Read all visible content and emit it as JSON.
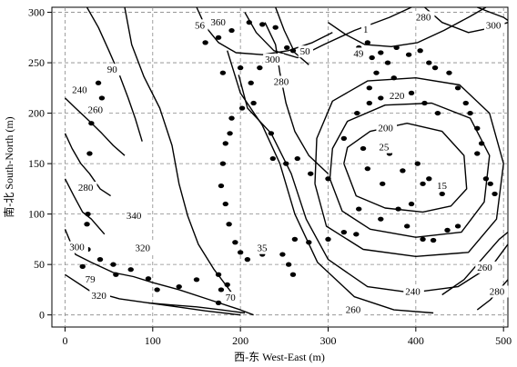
{
  "chart_data": {
    "type": "contour",
    "xlabel": "西-东  West-East (m)",
    "ylabel": "南-北  South-North (m)",
    "xlim": [
      -15,
      505
    ],
    "ylim": [
      -12,
      305
    ],
    "x_ticks": [
      0,
      100,
      200,
      300,
      400,
      500
    ],
    "y_ticks": [
      0,
      50,
      100,
      150,
      200,
      250,
      300
    ],
    "grid": true,
    "contour_lines": [
      {
        "label": "15",
        "points": [
          [
            318,
            150
          ],
          [
            332,
            118
          ],
          [
            365,
            106
          ],
          [
            408,
            102
          ],
          [
            440,
            108
          ],
          [
            458,
            125
          ],
          [
            455,
            158
          ],
          [
            430,
            182
          ],
          [
            390,
            190
          ],
          [
            348,
            182
          ],
          [
            322,
            166
          ],
          [
            318,
            150
          ]
        ]
      },
      {
        "label": "200",
        "points": [
          [
            302,
            135
          ],
          [
            316,
            103
          ],
          [
            348,
            85
          ],
          [
            400,
            77
          ],
          [
            452,
            82
          ],
          [
            478,
            112
          ],
          [
            484,
            158
          ],
          [
            462,
            195
          ],
          [
            418,
            210
          ],
          [
            365,
            208
          ],
          [
            322,
            192
          ],
          [
            305,
            165
          ],
          [
            302,
            135
          ]
        ]
      },
      {
        "label": "220",
        "points": [
          [
            285,
            130
          ],
          [
            298,
            88
          ],
          [
            340,
            65
          ],
          [
            400,
            58
          ],
          [
            460,
            62
          ],
          [
            492,
            95
          ],
          [
            500,
            150
          ],
          [
            484,
            200
          ],
          [
            450,
            228
          ],
          [
            400,
            235
          ],
          [
            345,
            232
          ],
          [
            305,
            212
          ],
          [
            287,
            175
          ],
          [
            285,
            130
          ]
        ]
      },
      {
        "label": "240",
        "points": [
          [
            198,
            238
          ],
          [
            208,
            205
          ],
          [
            235,
            180
          ],
          [
            258,
            140
          ],
          [
            275,
            95
          ],
          [
            300,
            55
          ],
          [
            345,
            28
          ],
          [
            395,
            22
          ],
          [
            448,
            28
          ],
          [
            488,
            50
          ],
          [
            505,
            70
          ]
        ]
      },
      {
        "label": "260",
        "points": [
          [
            185,
            262
          ],
          [
            200,
            220
          ],
          [
            225,
            188
          ],
          [
            245,
            150
          ],
          [
            262,
            100
          ],
          [
            288,
            52
          ],
          [
            330,
            18
          ],
          [
            375,
            5
          ],
          [
            420,
            2
          ]
        ]
      },
      {
        "label": "280",
        "points": [
          [
            228,
            290
          ],
          [
            240,
            268
          ],
          [
            245,
            240
          ],
          [
            252,
            210
          ],
          [
            262,
            182
          ],
          [
            278,
            158
          ],
          [
            300,
            140
          ]
        ]
      },
      {
        "label": "300",
        "points": [
          [
            205,
            300
          ],
          [
            218,
            280
          ],
          [
            238,
            262
          ],
          [
            265,
            255
          ],
          [
            295,
            268
          ],
          [
            330,
            282
          ],
          [
            370,
            295
          ],
          [
            395,
            305
          ]
        ]
      },
      {
        "label": "320",
        "points": [
          [
            0,
            40
          ],
          [
            28,
            24
          ],
          [
            62,
            16
          ],
          [
            95,
            12
          ],
          [
            128,
            8
          ],
          [
            160,
            4
          ],
          [
            200,
            0
          ]
        ]
      },
      {
        "label": "340",
        "points": [
          [
            68,
            305
          ],
          [
            76,
            268
          ],
          [
            90,
            236
          ],
          [
            108,
            205
          ],
          [
            122,
            168
          ],
          [
            130,
            130
          ],
          [
            140,
            98
          ],
          [
            152,
            70
          ],
          [
            170,
            45
          ],
          [
            190,
            22
          ]
        ]
      },
      {
        "label": "360",
        "points": [
          [
            150,
            305
          ],
          [
            160,
            286
          ],
          [
            175,
            270
          ],
          [
            195,
            260
          ],
          [
            225,
            258
          ],
          [
            255,
            262
          ],
          [
            282,
            270
          ],
          [
            305,
            280
          ]
        ]
      },
      {
        "label": "1",
        "points": [
          [
            300,
            290
          ],
          [
            320,
            278
          ],
          [
            342,
            268
          ],
          [
            372,
            266
          ],
          [
            402,
            270
          ],
          [
            432,
            282
          ],
          [
            462,
            296
          ],
          [
            480,
            305
          ]
        ]
      },
      {
        "label": "280",
        "points": [
          [
            410,
            305
          ],
          [
            430,
            290
          ],
          [
            460,
            280
          ],
          [
            488,
            285
          ],
          [
            505,
            290
          ]
        ]
      },
      {
        "label": "300",
        "points": [
          [
            470,
            305
          ],
          [
            485,
            300
          ],
          [
            500,
            295
          ],
          [
            505,
            292
          ]
        ]
      },
      {
        "label": "260",
        "points": [
          [
            430,
            20
          ],
          [
            455,
            35
          ],
          [
            475,
            55
          ],
          [
            495,
            75
          ],
          [
            505,
            82
          ]
        ]
      },
      {
        "label": "280",
        "points": [
          [
            470,
            5
          ],
          [
            485,
            15
          ],
          [
            500,
            30
          ],
          [
            505,
            35
          ]
        ]
      },
      {
        "label": "300",
        "points": [
          [
            0,
            85
          ],
          [
            12,
            60
          ],
          [
            30,
            52
          ],
          [
            55,
            42
          ],
          [
            78,
            38
          ],
          [
            100,
            32
          ],
          [
            130,
            25
          ],
          [
            165,
            15
          ],
          [
            200,
            5
          ],
          [
            215,
            0
          ]
        ]
      },
      {
        "label": "280",
        "points": [
          [
            0,
            135
          ],
          [
            10,
            118
          ],
          [
            20,
            102
          ],
          [
            30,
            95
          ],
          [
            45,
            80
          ]
        ]
      },
      {
        "label": "260",
        "points": [
          [
            0,
            180
          ],
          [
            8,
            165
          ],
          [
            18,
            150
          ],
          [
            28,
            140
          ],
          [
            40,
            125
          ],
          [
            52,
            118
          ]
        ]
      },
      {
        "label": "240",
        "points": [
          [
            0,
            215
          ],
          [
            12,
            205
          ],
          [
            28,
            192
          ],
          [
            42,
            180
          ],
          [
            55,
            168
          ],
          [
            68,
            158
          ]
        ]
      },
      {
        "label": "90",
        "points": [
          [
            25,
            305
          ],
          [
            38,
            285
          ],
          [
            50,
            262
          ],
          [
            62,
            238
          ],
          [
            72,
            215
          ],
          [
            80,
            195
          ],
          [
            88,
            172
          ]
        ]
      },
      {
        "label": "70",
        "points": [
          [
            95,
            12
          ],
          [
            120,
            10
          ],
          [
            150,
            8
          ],
          [
            178,
            5
          ],
          [
            205,
            2
          ]
        ]
      },
      {
        "label": "50",
        "points": [
          [
            240,
            305
          ],
          [
            250,
            282
          ],
          [
            262,
            260
          ],
          [
            278,
            248
          ]
        ]
      }
    ],
    "labels": [
      {
        "text": "56",
        "x": 148,
        "y": 284
      },
      {
        "text": "360",
        "x": 166,
        "y": 287
      },
      {
        "text": "300",
        "x": 228,
        "y": 250
      },
      {
        "text": "50",
        "x": 268,
        "y": 258
      },
      {
        "text": "280",
        "x": 238,
        "y": 228
      },
      {
        "text": "1",
        "x": 340,
        "y": 280
      },
      {
        "text": "280",
        "x": 400,
        "y": 292
      },
      {
        "text": "300",
        "x": 480,
        "y": 284
      },
      {
        "text": "49",
        "x": 329,
        "y": 256
      },
      {
        "text": "90",
        "x": 48,
        "y": 240
      },
      {
        "text": "240",
        "x": 8,
        "y": 220
      },
      {
        "text": "260",
        "x": 26,
        "y": 200
      },
      {
        "text": "220",
        "x": 370,
        "y": 214
      },
      {
        "text": "200",
        "x": 357,
        "y": 182
      },
      {
        "text": "25",
        "x": 358,
        "y": 163
      },
      {
        "text": "15",
        "x": 424,
        "y": 125
      },
      {
        "text": "280",
        "x": 15,
        "y": 123
      },
      {
        "text": "340",
        "x": 70,
        "y": 95
      },
      {
        "text": "320",
        "x": 80,
        "y": 63
      },
      {
        "text": "300",
        "x": 5,
        "y": 64
      },
      {
        "text": "35",
        "x": 219,
        "y": 63
      },
      {
        "text": "79",
        "x": 23,
        "y": 32
      },
      {
        "text": "320",
        "x": 30,
        "y": 16
      },
      {
        "text": "70",
        "x": 183,
        "y": 14
      },
      {
        "text": "240",
        "x": 388,
        "y": 20
      },
      {
        "text": "260",
        "x": 470,
        "y": 44
      },
      {
        "text": "280",
        "x": 484,
        "y": 20
      },
      {
        "text": "260",
        "x": 320,
        "y": 2
      }
    ],
    "points": [
      [
        35,
        200
      ],
      [
        38,
        230
      ],
      [
        42,
        215
      ],
      [
        30,
        190
      ],
      [
        28,
        160
      ],
      [
        32,
        125
      ],
      [
        26,
        100
      ],
      [
        25,
        90
      ],
      [
        22,
        70
      ],
      [
        26,
        65
      ],
      [
        20,
        48
      ],
      [
        40,
        55
      ],
      [
        55,
        50
      ],
      [
        75,
        45
      ],
      [
        58,
        40
      ],
      [
        95,
        36
      ],
      [
        105,
        25
      ],
      [
        130,
        28
      ],
      [
        150,
        35
      ],
      [
        175,
        40
      ],
      [
        178,
        25
      ],
      [
        185,
        30
      ],
      [
        175,
        12
      ],
      [
        160,
        270
      ],
      [
        175,
        275
      ],
      [
        190,
        282
      ],
      [
        210,
        290
      ],
      [
        225,
        288
      ],
      [
        240,
        285
      ],
      [
        253,
        265
      ],
      [
        260,
        262
      ],
      [
        180,
        240
      ],
      [
        200,
        245
      ],
      [
        215,
        210
      ],
      [
        235,
        180
      ],
      [
        237,
        155
      ],
      [
        252,
        150
      ],
      [
        265,
        155
      ],
      [
        280,
        140
      ],
      [
        300,
        135
      ],
      [
        318,
        175
      ],
      [
        333,
        200
      ],
      [
        347,
        210
      ],
      [
        360,
        215
      ],
      [
        350,
        255
      ],
      [
        360,
        260
      ],
      [
        368,
        250
      ],
      [
        378,
        265
      ],
      [
        392,
        258
      ],
      [
        405,
        262
      ],
      [
        415,
        250
      ],
      [
        422,
        245
      ],
      [
        438,
        240
      ],
      [
        448,
        225
      ],
      [
        457,
        210
      ],
      [
        462,
        200
      ],
      [
        470,
        185
      ],
      [
        475,
        170
      ],
      [
        470,
        160
      ],
      [
        480,
        135
      ],
      [
        485,
        130
      ],
      [
        490,
        120
      ],
      [
        345,
        145
      ],
      [
        362,
        130
      ],
      [
        335,
        105
      ],
      [
        380,
        105
      ],
      [
        390,
        88
      ],
      [
        408,
        75
      ],
      [
        420,
        74
      ],
      [
        436,
        84
      ],
      [
        448,
        88
      ],
      [
        430,
        120
      ],
      [
        415,
        135
      ],
      [
        402,
        150
      ],
      [
        385,
        143
      ],
      [
        370,
        160
      ],
      [
        340,
        165
      ],
      [
        335,
        265
      ],
      [
        345,
        270
      ],
      [
        355,
        240
      ],
      [
        347,
        225
      ],
      [
        375,
        235
      ],
      [
        395,
        220
      ],
      [
        410,
        210
      ],
      [
        425,
        200
      ],
      [
        408,
        130
      ],
      [
        395,
        110
      ],
      [
        360,
        95
      ],
      [
        332,
        80
      ],
      [
        318,
        82
      ],
      [
        300,
        75
      ],
      [
        278,
        72
      ],
      [
        262,
        75
      ],
      [
        260,
        40
      ],
      [
        255,
        50
      ],
      [
        248,
        60
      ],
      [
        225,
        60
      ],
      [
        208,
        55
      ],
      [
        200,
        62
      ],
      [
        194,
        72
      ],
      [
        187,
        90
      ],
      [
        183,
        110
      ],
      [
        178,
        128
      ],
      [
        180,
        150
      ],
      [
        183,
        170
      ],
      [
        188,
        180
      ],
      [
        190,
        195
      ],
      [
        202,
        205
      ],
      [
        212,
        230
      ],
      [
        222,
        245
      ],
      [
        232,
        255
      ]
    ]
  }
}
